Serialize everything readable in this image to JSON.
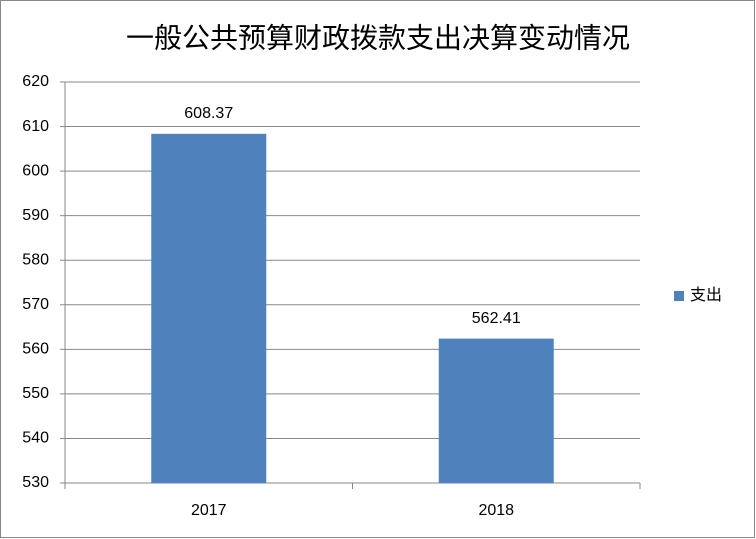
{
  "chart_data": {
    "type": "bar",
    "title": "一般公共预算财政拨款支出决算变动情况",
    "categories": [
      "2017",
      "2018"
    ],
    "series": [
      {
        "name": "支出",
        "color": "#4f81bd",
        "values": [
          608.37,
          562.41
        ]
      }
    ],
    "ylim": [
      530,
      620
    ],
    "yticks": [
      530,
      540,
      550,
      560,
      570,
      580,
      590,
      600,
      610,
      620
    ],
    "grid": true,
    "legend": "right"
  }
}
